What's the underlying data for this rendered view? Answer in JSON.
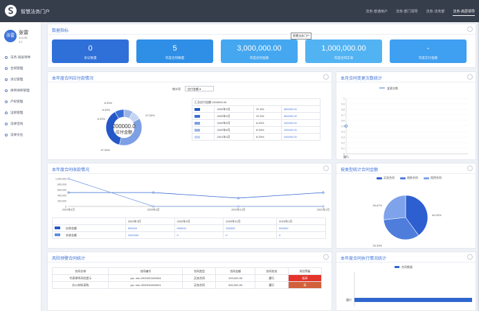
{
  "app": {
    "title": "智慧法务门户"
  },
  "topnav": [
    "法务-普通用户",
    "法务-部门领导",
    "法务-法务部",
    "法务-高层领导"
  ],
  "topnav_active": 3,
  "user": {
    "avatar_text": "张雷",
    "name": "张雷",
    "line2": "2010年",
    "line3": "3人"
  },
  "sidebar": {
    "items": [
      {
        "label": "法务-高层领导"
      },
      {
        "label": "合同管理"
      },
      {
        "label": "诉讼管理"
      },
      {
        "label": "律所律师管理"
      },
      {
        "label": "产权管理"
      },
      {
        "label": "证照管理"
      },
      {
        "label": "法律咨询"
      },
      {
        "label": "法律文化"
      }
    ]
  },
  "stats": {
    "title": "数据指标",
    "tooltip": "智慧法务门户",
    "cards": [
      {
        "value": "0",
        "label": "诉讼数量",
        "color": "#2f6fd8"
      },
      {
        "value": "5",
        "label": "年度合同数量",
        "color": "#2f8fe6"
      },
      {
        "value": "3,000,000.00",
        "label": "年度合同金额",
        "color": "#44a7f0"
      },
      {
        "value": "1,000,000.00",
        "label": "年度合同实收",
        "color": "#52b3f3"
      },
      {
        "value": "-",
        "label": "年度实付金额",
        "color": "#3f9ff0"
      }
    ]
  },
  "payable": {
    "title": "本年度合同应付款情况",
    "select_prefix": "统计项",
    "select_value": "应付金额",
    "donut_center": "200000.0",
    "donut_sub": "应付金额",
    "pct_labels": [
      "8.33%",
      "8.33%",
      "8.33%",
      "37.50%",
      "37.50%"
    ],
    "table_title": "汇总应付金额:1200000.00",
    "rows": [
      {
        "month": "2020年3月",
        "pct": "37.5%",
        "amount": "450000.00",
        "color": "#2457c7"
      },
      {
        "month": "2020年4月",
        "pct": "37.5%",
        "amount": "450000.00",
        "color": "#3a6fd6"
      },
      {
        "month": "2020年5月",
        "pct": "8.33%",
        "amount": "100000.00",
        "color": "#7d9fe3"
      },
      {
        "month": "2020年8月",
        "pct": "8.33%",
        "amount": "100000.00",
        "color": "#9db6ea"
      },
      {
        "month": "2021年3月",
        "pct": "8.33%",
        "amount": "100000.00",
        "color": "#c5d4f2"
      }
    ]
  },
  "changes": {
    "title": "本月合同变更次数统计",
    "legend": "变更次数",
    "y_ticks": [
      "1",
      "0.9",
      "0.8",
      "0.7",
      "0.6",
      "0.5",
      "0.4",
      "0.3",
      "0.2",
      "0.1",
      "0"
    ],
    "x_label": "履行",
    "value": 0.5
  },
  "receipts": {
    "title": "本年度合同收款情况",
    "y_ticks": [
      "1,000,000",
      "800,000",
      "600,000",
      "400,000",
      "200,000",
      "0"
    ],
    "months": [
      "2020年3月",
      "2020年4月",
      "2020年12月",
      "2022年1月"
    ],
    "rows": [
      {
        "label": "应收金额",
        "values": [
          "500000",
          "500000",
          "300000",
          "500000"
        ],
        "color": "#2457c7"
      },
      {
        "label": "实收金额",
        "values": [
          "1000000",
          "0",
          "0",
          "0"
        ],
        "color": "#5f8fe0"
      }
    ]
  },
  "chart_data": [
    {
      "type": "pie",
      "title": "本年度合同应付款情况",
      "categories": [
        "2020年3月",
        "2020年4月",
        "2020年5月",
        "2020年8月",
        "2021年3月"
      ],
      "values": [
        450000,
        450000,
        100000,
        100000,
        100000
      ]
    },
    {
      "type": "line",
      "title": "本月合同变更次数统计",
      "categories": [
        "履行"
      ],
      "series": [
        {
          "name": "变更次数",
          "values": [
            0.5
          ]
        }
      ],
      "ylim": [
        0,
        1
      ]
    },
    {
      "type": "line",
      "title": "本年度合同收款情况",
      "categories": [
        "2020年3月",
        "2020年4月",
        "2020年12月",
        "2022年1月"
      ],
      "series": [
        {
          "name": "应收金额",
          "values": [
            500000,
            500000,
            300000,
            500000
          ]
        },
        {
          "name": "实收金额",
          "values": [
            1000000,
            0,
            0,
            0
          ]
        }
      ],
      "ylim": [
        0,
        1000000
      ]
    },
    {
      "type": "pie",
      "title": "按类型统计合同金额",
      "categories": [
        "买卖合同",
        "借款合同",
        "租赁合同"
      ],
      "values": [
        40.0,
        33.33,
        26.67
      ]
    },
    {
      "type": "bar",
      "title": "本年度合同执行情况统计",
      "categories": [
        "履行"
      ],
      "series": [
        {
          "name": "合同数量",
          "values": [
            5
          ]
        }
      ]
    }
  ],
  "bytype": {
    "title": "按类型统计合同金额",
    "legend": [
      "买卖合同",
      "借款合同",
      "租赁合同"
    ],
    "labels": [
      "26.67%",
      "40.00%",
      "33.33%"
    ],
    "colors": [
      "#2d5fd0",
      "#4e7ddc",
      "#7fa3ea"
    ]
  },
  "risk": {
    "title": "风险预警合同统计",
    "headers": [
      "合同名称",
      "合同编号",
      "合同类型",
      "合同金额",
      "合同状态",
      "风险等级"
    ],
    "rows": [
      {
        "name": "代表律师风险提示",
        "code": "yw- mm-2020031100004",
        "type": "买卖合同",
        "amount": "200,000.00",
        "status": "履行",
        "level": "极高",
        "cls": "risk-hi"
      },
      {
        "name": "办公材料采购",
        "code": "yw- mm-2020031600001",
        "type": "买卖合同",
        "amount": "500,000.00",
        "status": "履行",
        "level": "高",
        "cls": "risk-mid"
      }
    ]
  },
  "exec": {
    "title": "本年度合同执行情况统计",
    "legend": "合同数量",
    "y_label": "履行"
  }
}
